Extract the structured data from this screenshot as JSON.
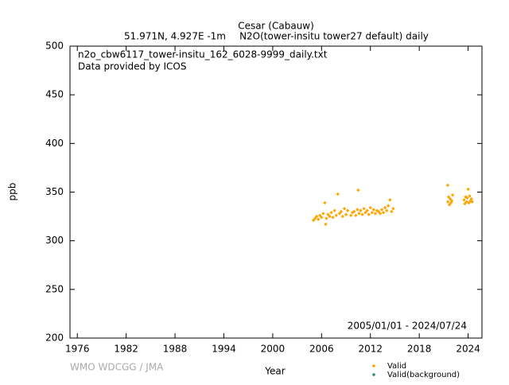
{
  "chart_data": {
    "type": "scatter",
    "title": "Cesar (Cabauw)",
    "subtitle_left": "51.971N, 4.927E -1m",
    "subtitle_right": "N2O(tower-insitu tower27 default) daily",
    "annotations": [
      "n2o_cbw6117_tower-insitu_162_6028-9999_daily.txt",
      "Data provided by ICOS"
    ],
    "period": "2005/01/01 - 2024/07/24",
    "credit": "WMO WDCGG / JMA",
    "xlabel": "Year",
    "ylabel": "ppb",
    "xlim": [
      1975.1,
      2025.7
    ],
    "ylim": [
      200,
      500
    ],
    "xticks": [
      1976,
      1982,
      1988,
      1994,
      2000,
      2006,
      2012,
      2018,
      2024
    ],
    "yticks": [
      200,
      250,
      300,
      350,
      400,
      450,
      500
    ],
    "series": [
      {
        "name": "Valid",
        "color": "#ffa500",
        "x": [
          2005.0,
          2005.2,
          2005.4,
          2005.6,
          2005.8,
          2006.0,
          2006.2,
          2006.4,
          2006.5,
          2006.6,
          2006.8,
          2007.0,
          2007.2,
          2007.4,
          2007.6,
          2007.8,
          2008.0,
          2008.2,
          2008.4,
          2008.6,
          2008.8,
          2009.0,
          2009.2,
          2009.6,
          2009.8,
          2010.0,
          2010.2,
          2010.4,
          2010.5,
          2010.6,
          2010.8,
          2011.0,
          2011.2,
          2011.4,
          2011.6,
          2011.8,
          2012.0,
          2012.2,
          2012.4,
          2012.6,
          2012.8,
          2013.0,
          2013.2,
          2013.4,
          2013.6,
          2013.8,
          2014.0,
          2014.2,
          2014.4,
          2014.6,
          2014.8,
          2021.5,
          2021.5,
          2021.6,
          2021.7,
          2021.8,
          2021.9,
          2022.0,
          2022.1,
          2023.5,
          2023.6,
          2023.7,
          2023.8,
          2023.9,
          2024.0,
          2024.1,
          2024.2,
          2024.3,
          2024.4,
          2024.5
        ],
        "values": [
          321,
          323,
          325,
          322,
          326,
          324,
          328,
          339,
          317,
          323,
          327,
          325,
          329,
          324,
          331,
          326,
          348,
          328,
          330,
          325,
          333,
          327,
          331,
          326,
          329,
          330,
          326,
          332,
          352,
          328,
          331,
          327,
          333,
          329,
          331,
          327,
          334,
          329,
          332,
          328,
          331,
          330,
          328,
          332,
          329,
          334,
          331,
          336,
          342,
          330,
          333,
          357,
          340,
          345,
          337,
          343,
          339,
          341,
          347,
          342,
          338,
          345,
          340,
          344,
          353,
          339,
          346,
          341,
          343,
          340
        ]
      },
      {
        "name": "Valid(background)",
        "color": "#2e8b57",
        "x": [],
        "values": []
      }
    ]
  }
}
